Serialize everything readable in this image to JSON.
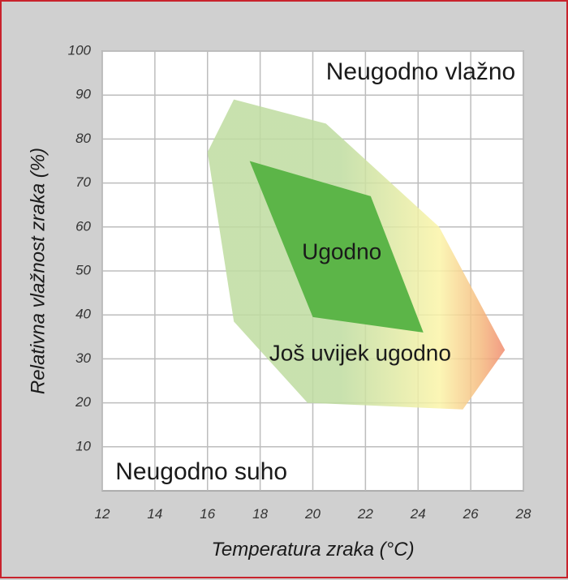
{
  "chart_data": {
    "type": "area",
    "title": "",
    "xlabel": "Temperatura zraka (°C)",
    "ylabel": "Relativna vlažnost zraka (%)",
    "xlim": [
      12,
      28
    ],
    "ylim": [
      0,
      100
    ],
    "x_ticks": [
      12,
      14,
      16,
      18,
      20,
      22,
      24,
      26,
      28
    ],
    "y_ticks": [
      10,
      20,
      30,
      40,
      50,
      60,
      70,
      80,
      90,
      100
    ],
    "grid": true,
    "series": [
      {
        "name": "Još uvijek ugodno",
        "points": [
          [
            17.0,
            89
          ],
          [
            20.5,
            83.5
          ],
          [
            24.8,
            60
          ],
          [
            27.3,
            32
          ],
          [
            25.7,
            18.5
          ],
          [
            19.8,
            20
          ],
          [
            17.0,
            38.5
          ],
          [
            16.0,
            77
          ]
        ],
        "label_at": [
          21.8,
          31
        ]
      },
      {
        "name": "Ugodno",
        "points": [
          [
            17.6,
            75
          ],
          [
            22.2,
            67
          ],
          [
            24.2,
            36
          ],
          [
            20.0,
            39.5
          ]
        ],
        "label_at": [
          21.1,
          54
        ]
      }
    ],
    "annotations": [
      {
        "text": "Neugodno vlažno",
        "x": 20.5,
        "y": 95
      },
      {
        "text": "Neugodno suho",
        "x": 12.5,
        "y": 4
      }
    ]
  },
  "colors": {
    "frame_border": "#c8232c",
    "frame_bg": "#d0d0d0",
    "plot_bg": "#ffffff",
    "grid": "#bdbdbd",
    "comfort": "#5cb548",
    "still_comfort_green": "#bfdca0",
    "still_comfort_yellow": "#fbf4a8",
    "still_comfort_orange": "#f5b97e",
    "still_comfort_red": "#f08a6e"
  }
}
